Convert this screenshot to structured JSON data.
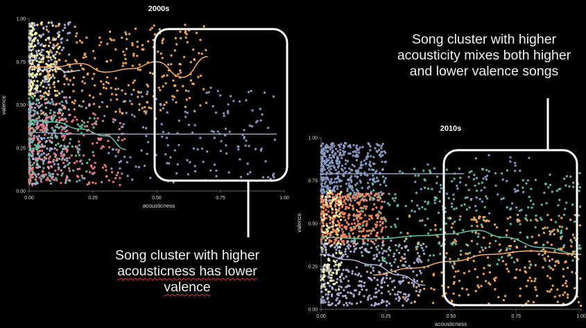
{
  "annotations": {
    "right_lines": [
      "Song cluster with higher",
      "acousticity mixes both higher",
      "and lower valence songs"
    ],
    "left_lines": [
      "Song cluster with higher",
      "acousticness has lower",
      "valence"
    ]
  },
  "colors": {
    "background": "#000000",
    "highlight_box": "#ffffff",
    "palette": [
      "#8da0cb",
      "#fc8d62",
      "#66c2a5",
      "#e78ac3",
      "#ffd92f",
      "#b3b3d9",
      "#f08080",
      "#ffffb3"
    ]
  },
  "chart_data": [
    {
      "type": "scatter",
      "title": "2000s",
      "xlabel": "acousticness",
      "ylabel": "valence",
      "xlim": [
        0,
        1
      ],
      "ylim": [
        0,
        1
      ],
      "xticks": [
        "0.00",
        "0.25",
        "0.50",
        "0.75",
        "1.00"
      ],
      "yticks": [
        "0.00",
        "0.25",
        "0.50",
        "0.75",
        "1.00"
      ],
      "grid": false,
      "legend": "none",
      "highlight_region": {
        "x": [
          0.5,
          1.0
        ],
        "y": [
          0.07,
          0.96
        ]
      },
      "trend_lines": [
        {
          "color": "#8da0cb",
          "points": [
            [
              0.0,
              0.34
            ],
            [
              0.2,
              0.33
            ],
            [
              0.5,
              0.33
            ],
            [
              0.75,
              0.33
            ],
            [
              0.97,
              0.33
            ]
          ]
        },
        {
          "color": "#fdae61",
          "points": [
            [
              0.0,
              0.72
            ],
            [
              0.1,
              0.72
            ],
            [
              0.2,
              0.74
            ],
            [
              0.3,
              0.69
            ],
            [
              0.4,
              0.71
            ],
            [
              0.5,
              0.75
            ],
            [
              0.6,
              0.66
            ],
            [
              0.7,
              0.78
            ]
          ]
        },
        {
          "color": "#66c2a5",
          "points": [
            [
              0.0,
              0.41
            ],
            [
              0.1,
              0.4
            ],
            [
              0.2,
              0.36
            ],
            [
              0.3,
              0.32
            ],
            [
              0.38,
              0.24
            ]
          ]
        },
        {
          "color": "#e0e0e0",
          "points": [
            [
              0.0,
              0.74
            ],
            [
              0.05,
              0.7
            ],
            [
              0.1,
              0.72
            ],
            [
              0.15,
              0.69
            ],
            [
              0.2,
              0.7
            ]
          ]
        }
      ]
    },
    {
      "type": "scatter",
      "title": "2010s",
      "xlabel": "acousticness",
      "ylabel": "valence",
      "xlim": [
        0,
        1
      ],
      "ylim": [
        0,
        1
      ],
      "xticks": [
        "0.00",
        "0.25",
        "0.50",
        "0.75",
        "1.00"
      ],
      "yticks": [
        "0.00",
        "0.25",
        "0.50",
        "0.75",
        "1.00"
      ],
      "grid": false,
      "legend": "none",
      "highlight_region": {
        "x": [
          0.45,
          1.0
        ],
        "y": [
          0.02,
          0.96
        ]
      },
      "trend_lines": [
        {
          "color": "#8da0cb",
          "points": [
            [
              0.0,
              0.79
            ],
            [
              0.2,
              0.79
            ],
            [
              0.4,
              0.79
            ],
            [
              0.55,
              0.79
            ]
          ]
        },
        {
          "color": "#66c2a5",
          "points": [
            [
              0.0,
              0.42
            ],
            [
              0.2,
              0.41
            ],
            [
              0.4,
              0.43
            ],
            [
              0.5,
              0.44
            ],
            [
              0.6,
              0.46
            ],
            [
              0.7,
              0.42
            ],
            [
              0.85,
              0.36
            ],
            [
              1.0,
              0.32
            ]
          ]
        },
        {
          "color": "#fdae61",
          "points": [
            [
              0.2,
              0.2
            ],
            [
              0.35,
              0.24
            ],
            [
              0.5,
              0.28
            ],
            [
              0.65,
              0.32
            ],
            [
              0.8,
              0.34
            ],
            [
              1.0,
              0.32
            ]
          ]
        },
        {
          "color": "#b3b3d9",
          "points": [
            [
              0.0,
              0.32
            ],
            [
              0.1,
              0.29
            ],
            [
              0.2,
              0.26
            ],
            [
              0.3,
              0.2
            ],
            [
              0.4,
              0.14
            ]
          ]
        }
      ]
    }
  ]
}
